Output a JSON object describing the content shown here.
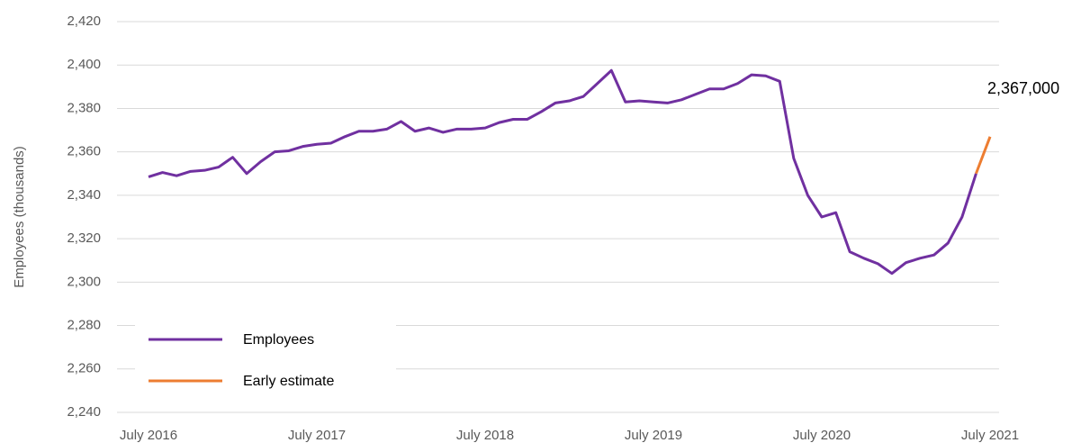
{
  "chart_data": {
    "type": "line",
    "y_label": "Employees (thousands)",
    "annotation": "2,367,000",
    "categories": [
      "July 2016",
      null,
      null,
      null,
      null,
      null,
      null,
      null,
      null,
      null,
      null,
      null,
      "July 2017",
      null,
      null,
      null,
      null,
      null,
      null,
      null,
      null,
      null,
      null,
      null,
      "July 2018",
      null,
      null,
      null,
      null,
      null,
      null,
      null,
      null,
      null,
      null,
      null,
      "July 2019",
      null,
      null,
      null,
      null,
      null,
      null,
      null,
      null,
      null,
      null,
      null,
      "July 2020",
      null,
      null,
      null,
      null,
      null,
      null,
      null,
      null,
      null,
      null,
      null,
      "July 2021"
    ],
    "series": [
      {
        "name": "Employees",
        "color": "#7030a0",
        "values": [
          2348.5,
          2350.5,
          2349,
          2351,
          2351.5,
          2353,
          2357.5,
          2350,
          2355.5,
          2360,
          2360.5,
          2362.5,
          2363.5,
          2364,
          2367,
          2369.5,
          2369.5,
          2370.5,
          2374,
          2369.5,
          2371,
          2369,
          2370.5,
          2370.5,
          2371,
          2373.5,
          2375,
          2375,
          2378.5,
          2382.5,
          2383.5,
          2385.5,
          2391.5,
          2397.5,
          2383,
          2383.5,
          2383,
          2382.5,
          2384,
          2386.5,
          2389,
          2389,
          2391.5,
          2395.5,
          2395,
          2392.5,
          2357,
          2340,
          2330,
          2332,
          2314,
          2311,
          2308.5,
          2304,
          2309,
          2311,
          2312.5,
          2318,
          2330,
          2350,
          null
        ]
      },
      {
        "name": "Early estimate",
        "color": "#ed7d31",
        "values": [
          null,
          null,
          null,
          null,
          null,
          null,
          null,
          null,
          null,
          null,
          null,
          null,
          null,
          null,
          null,
          null,
          null,
          null,
          null,
          null,
          null,
          null,
          null,
          null,
          null,
          null,
          null,
          null,
          null,
          null,
          null,
          null,
          null,
          null,
          null,
          null,
          null,
          null,
          null,
          null,
          null,
          null,
          null,
          null,
          null,
          null,
          null,
          null,
          null,
          null,
          null,
          null,
          null,
          null,
          null,
          null,
          null,
          null,
          null,
          2350,
          2367
        ]
      }
    ],
    "ylim": [
      2240,
      2420
    ],
    "yticks": [
      {
        "value": 2240,
        "label": "2,240"
      },
      {
        "value": 2260,
        "label": "2,260"
      },
      {
        "value": 2280,
        "label": "2,280"
      },
      {
        "value": 2300,
        "label": "2,300"
      },
      {
        "value": 2320,
        "label": "2,320"
      },
      {
        "value": 2340,
        "label": "2,340"
      },
      {
        "value": 2360,
        "label": "2,360"
      },
      {
        "value": 2380,
        "label": "2,380"
      },
      {
        "value": 2400,
        "label": "2,400"
      },
      {
        "value": 2420,
        "label": "2,420"
      }
    ],
    "grid": true
  }
}
